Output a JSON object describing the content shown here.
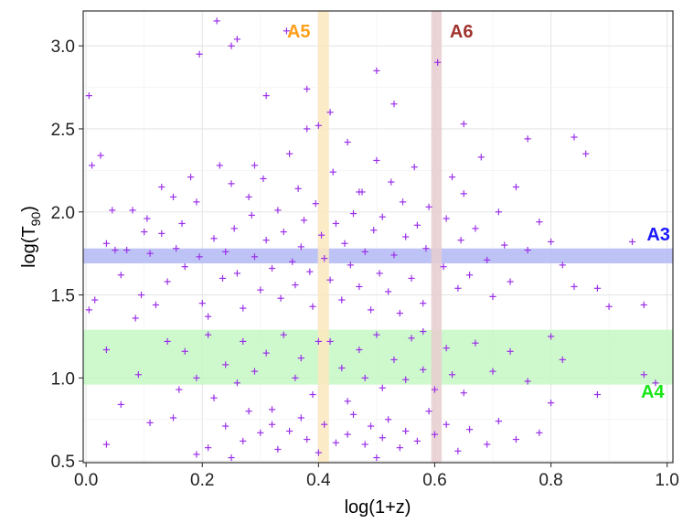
{
  "chart_data": {
    "type": "scatter",
    "xlabel": "log(1+z)",
    "ylabel_main": "log(T",
    "ylabel_sub": "90",
    "ylabel_close": ")",
    "xlim": [
      -0.005,
      1.01
    ],
    "ylim": [
      0.49,
      3.21
    ],
    "x_ticks": [
      0.0,
      0.2,
      0.4,
      0.6,
      0.8,
      1.0
    ],
    "x_tick_labels": [
      "0.0",
      "0.2",
      "0.4",
      "0.6",
      "0.8",
      "1.0"
    ],
    "y_ticks": [
      0.5,
      1.0,
      1.5,
      2.0,
      2.5,
      3.0
    ],
    "y_tick_labels": [
      "0.5",
      "1.0",
      "1.5",
      "2.0",
      "2.5",
      "3.0"
    ],
    "grid": true,
    "marker": "+",
    "marker_color": "#9b30e8",
    "bands": [
      {
        "label": "A3",
        "orientation": "horizontal",
        "range": [
          1.69,
          1.78
        ],
        "fill": "#b3b8f5",
        "label_color": "#1a1aff"
      },
      {
        "label": "A4",
        "orientation": "horizontal",
        "range": [
          0.96,
          1.29
        ],
        "fill": "#c6f8c4",
        "label_color": "#19e619"
      },
      {
        "label": "A5",
        "orientation": "vertical",
        "range": [
          0.399,
          0.418
        ],
        "fill": "#fce7bd",
        "label_color": "#ff9f19"
      },
      {
        "label": "A6",
        "orientation": "vertical",
        "range": [
          0.594,
          0.612
        ],
        "fill": "#e8cccf",
        "label_color": "#a0342e"
      }
    ],
    "points": [
      [
        0.005,
        2.7
      ],
      [
        0.01,
        2.28
      ],
      [
        0.025,
        2.34
      ],
      [
        0.035,
        1.81
      ],
      [
        0.045,
        2.01
      ],
      [
        0.05,
        1.77
      ],
      [
        0.06,
        1.62
      ],
      [
        0.07,
        1.77
      ],
      [
        0.08,
        2.01
      ],
      [
        0.085,
        1.36
      ],
      [
        0.095,
        1.5
      ],
      [
        0.1,
        1.88
      ],
      [
        0.105,
        1.96
      ],
      [
        0.11,
        1.75
      ],
      [
        0.12,
        1.44
      ],
      [
        0.13,
        2.15
      ],
      [
        0.14,
        1.58
      ],
      [
        0.15,
        2.09
      ],
      [
        0.155,
        1.78
      ],
      [
        0.165,
        1.93
      ],
      [
        0.17,
        1.67
      ],
      [
        0.18,
        2.21
      ],
      [
        0.19,
        2.06
      ],
      [
        0.195,
        1.73
      ],
      [
        0.2,
        1.45
      ],
      [
        0.21,
        1.37
      ],
      [
        0.22,
        1.84
      ],
      [
        0.23,
        2.28
      ],
      [
        0.235,
        1.6
      ],
      [
        0.24,
        1.76
      ],
      [
        0.25,
        2.17
      ],
      [
        0.255,
        1.9
      ],
      [
        0.26,
        1.63
      ],
      [
        0.27,
        1.42
      ],
      [
        0.28,
        2.09
      ],
      [
        0.285,
        1.98
      ],
      [
        0.29,
        1.73
      ],
      [
        0.3,
        1.53
      ],
      [
        0.305,
        2.2
      ],
      [
        0.31,
        1.83
      ],
      [
        0.32,
        1.66
      ],
      [
        0.33,
        2.01
      ],
      [
        0.335,
        1.48
      ],
      [
        0.34,
        1.88
      ],
      [
        0.35,
        2.35
      ],
      [
        0.355,
        1.7
      ],
      [
        0.36,
        1.56
      ],
      [
        0.365,
        2.14
      ],
      [
        0.37,
        1.79
      ],
      [
        0.375,
        1.95
      ],
      [
        0.38,
        2.5
      ],
      [
        0.385,
        1.64
      ],
      [
        0.39,
        1.43
      ],
      [
        0.395,
        2.05
      ],
      [
        0.405,
        1.86
      ],
      [
        0.41,
        1.72
      ],
      [
        0.42,
        1.59
      ],
      [
        0.425,
        2.24
      ],
      [
        0.43,
        1.93
      ],
      [
        0.44,
        1.47
      ],
      [
        0.445,
        1.81
      ],
      [
        0.45,
        2.42
      ],
      [
        0.455,
        1.68
      ],
      [
        0.46,
        1.99
      ],
      [
        0.47,
        1.55
      ],
      [
        0.475,
        2.12
      ],
      [
        0.48,
        1.76
      ],
      [
        0.49,
        1.41
      ],
      [
        0.495,
        1.89
      ],
      [
        0.5,
        2.31
      ],
      [
        0.505,
        1.63
      ],
      [
        0.51,
        1.97
      ],
      [
        0.52,
        1.52
      ],
      [
        0.525,
        2.18
      ],
      [
        0.53,
        1.74
      ],
      [
        0.54,
        1.39
      ],
      [
        0.545,
        2.06
      ],
      [
        0.55,
        1.85
      ],
      [
        0.56,
        1.6
      ],
      [
        0.565,
        2.27
      ],
      [
        0.57,
        1.92
      ],
      [
        0.58,
        1.45
      ],
      [
        0.585,
        1.78
      ],
      [
        0.59,
        2.03
      ],
      [
        0.615,
        1.67
      ],
      [
        0.62,
        1.96
      ],
      [
        0.63,
        2.21
      ],
      [
        0.64,
        1.54
      ],
      [
        0.645,
        1.83
      ],
      [
        0.65,
        2.11
      ],
      [
        0.66,
        1.62
      ],
      [
        0.67,
        1.9
      ],
      [
        0.68,
        2.33
      ],
      [
        0.69,
        1.71
      ],
      [
        0.7,
        1.49
      ],
      [
        0.71,
        2.0
      ],
      [
        0.72,
        1.8
      ],
      [
        0.73,
        1.58
      ],
      [
        0.74,
        2.15
      ],
      [
        0.76,
        1.77
      ],
      [
        0.78,
        1.94
      ],
      [
        0.8,
        1.82
      ],
      [
        0.82,
        1.68
      ],
      [
        0.84,
        1.55
      ],
      [
        0.88,
        1.54
      ],
      [
        0.9,
        1.43
      ],
      [
        0.015,
        1.47
      ],
      [
        0.005,
        1.41
      ],
      [
        0.13,
        1.87
      ],
      [
        0.29,
        2.28
      ],
      [
        0.47,
        2.12
      ],
      [
        0.035,
        1.17
      ],
      [
        0.06,
        0.84
      ],
      [
        0.09,
        1.02
      ],
      [
        0.11,
        0.73
      ],
      [
        0.14,
        1.22
      ],
      [
        0.16,
        0.93
      ],
      [
        0.17,
        1.16
      ],
      [
        0.19,
        1.0
      ],
      [
        0.21,
        1.26
      ],
      [
        0.22,
        0.88
      ],
      [
        0.24,
        1.08
      ],
      [
        0.26,
        0.97
      ],
      [
        0.27,
        1.22
      ],
      [
        0.29,
        1.04
      ],
      [
        0.31,
        1.15
      ],
      [
        0.32,
        0.81
      ],
      [
        0.34,
        1.26
      ],
      [
        0.36,
        1.0
      ],
      [
        0.37,
        1.12
      ],
      [
        0.39,
        0.9
      ],
      [
        0.42,
        1.22
      ],
      [
        0.44,
        1.06
      ],
      [
        0.45,
        0.86
      ],
      [
        0.47,
        1.17
      ],
      [
        0.48,
        1.0
      ],
      [
        0.5,
        1.26
      ],
      [
        0.51,
        0.94
      ],
      [
        0.53,
        1.11
      ],
      [
        0.55,
        0.99
      ],
      [
        0.56,
        1.24
      ],
      [
        0.58,
        1.05
      ],
      [
        0.6,
        0.93
      ],
      [
        0.62,
        1.18
      ],
      [
        0.63,
        1.02
      ],
      [
        0.65,
        0.91
      ],
      [
        0.67,
        1.21
      ],
      [
        0.7,
        1.04
      ],
      [
        0.73,
        1.16
      ],
      [
        0.76,
        0.98
      ],
      [
        0.8,
        1.25
      ],
      [
        0.82,
        1.11
      ],
      [
        0.96,
        1.02
      ],
      [
        0.98,
        0.97
      ],
      [
        0.4,
        1.22
      ],
      [
        0.58,
        1.28
      ],
      [
        0.035,
        0.6
      ],
      [
        0.15,
        0.76
      ],
      [
        0.19,
        0.54
      ],
      [
        0.21,
        0.58
      ],
      [
        0.24,
        0.71
      ],
      [
        0.27,
        0.62
      ],
      [
        0.28,
        0.8
      ],
      [
        0.3,
        0.67
      ],
      [
        0.32,
        0.72
      ],
      [
        0.33,
        0.57
      ],
      [
        0.35,
        0.68
      ],
      [
        0.37,
        0.76
      ],
      [
        0.38,
        0.63
      ],
      [
        0.4,
        0.55
      ],
      [
        0.41,
        0.72
      ],
      [
        0.43,
        0.61
      ],
      [
        0.45,
        0.66
      ],
      [
        0.46,
        0.78
      ],
      [
        0.48,
        0.6
      ],
      [
        0.49,
        0.71
      ],
      [
        0.51,
        0.64
      ],
      [
        0.52,
        0.75
      ],
      [
        0.54,
        0.58
      ],
      [
        0.55,
        0.68
      ],
      [
        0.57,
        0.62
      ],
      [
        0.59,
        0.8
      ],
      [
        0.6,
        0.66
      ],
      [
        0.62,
        0.72
      ],
      [
        0.64,
        0.56
      ],
      [
        0.66,
        0.69
      ],
      [
        0.69,
        0.6
      ],
      [
        0.71,
        0.74
      ],
      [
        0.74,
        0.63
      ],
      [
        0.78,
        0.67
      ],
      [
        0.8,
        0.85
      ],
      [
        0.88,
        0.9
      ],
      [
        0.25,
        0.52
      ],
      [
        0.5,
        0.52
      ],
      [
        0.195,
        2.95
      ],
      [
        0.225,
        3.15
      ],
      [
        0.25,
        3.0
      ],
      [
        0.26,
        3.04
      ],
      [
        0.31,
        2.7
      ],
      [
        0.345,
        3.09
      ],
      [
        0.38,
        2.74
      ],
      [
        0.4,
        2.52
      ],
      [
        0.42,
        2.6
      ],
      [
        0.5,
        2.85
      ],
      [
        0.53,
        2.65
      ],
      [
        0.605,
        2.9
      ],
      [
        0.65,
        2.53
      ],
      [
        0.76,
        2.44
      ],
      [
        0.84,
        2.45
      ],
      [
        0.86,
        2.35
      ],
      [
        0.96,
        1.44
      ],
      [
        0.94,
        1.82
      ]
    ]
  }
}
